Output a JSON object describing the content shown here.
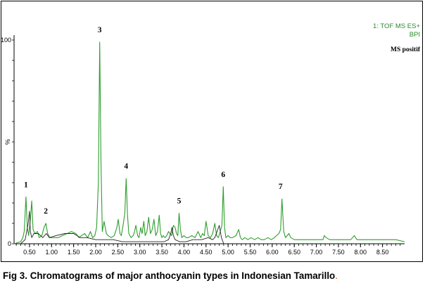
{
  "caption": {
    "text": "Fig 3. Chromatograms of major anthocyanin types in Indonesian Tamarillo",
    "period": "."
  },
  "detector": {
    "line1": "1: TOF MS ES+",
    "line2": "BPI"
  },
  "mode_label": "MS positif",
  "chart_data": {
    "type": "line",
    "xlabel": "",
    "ylabel": "%",
    "xlim": [
      0.15,
      9.0
    ],
    "ylim": [
      0,
      100
    ],
    "x_ticks": [
      0.5,
      1.0,
      1.5,
      2.0,
      2.5,
      3.0,
      3.5,
      4.0,
      4.5,
      5.0,
      5.5,
      6.0,
      6.5,
      7.0,
      7.5,
      8.0,
      8.5
    ],
    "x_tick_labels": [
      "0.50",
      "1.00",
      "1.50",
      "2.00",
      "2.50",
      "3.00",
      "3.50",
      "4.00",
      "4.50",
      "5.00",
      "5.50",
      "6.00",
      "6.50",
      "7.00",
      "7.50",
      "8.00",
      "8.50"
    ],
    "y_tick_labels": [
      "100",
      "0"
    ],
    "peaks": [
      {
        "label": "1",
        "x": 0.42,
        "y": 23
      },
      {
        "label": "2",
        "x": 0.87,
        "y": 10
      },
      {
        "label": "3",
        "x": 2.09,
        "y": 99
      },
      {
        "label": "4",
        "x": 2.69,
        "y": 32
      },
      {
        "label": "5",
        "x": 3.89,
        "y": 15
      },
      {
        "label": "6",
        "x": 4.89,
        "y": 28
      },
      {
        "label": "7",
        "x": 6.19,
        "y": 22
      }
    ],
    "series": [
      {
        "color": "#2e9e2e",
        "x": [
          0.15,
          0.3,
          0.35,
          0.38,
          0.42,
          0.45,
          0.48,
          0.52,
          0.55,
          0.58,
          0.62,
          0.68,
          0.72,
          0.78,
          0.83,
          0.87,
          0.91,
          0.96,
          1.05,
          1.15,
          1.25,
          1.35,
          1.45,
          1.55,
          1.62,
          1.68,
          1.75,
          1.82,
          1.88,
          1.93,
          1.98,
          2.02,
          2.06,
          2.09,
          2.12,
          2.15,
          2.19,
          2.24,
          2.28,
          2.35,
          2.42,
          2.48,
          2.51,
          2.55,
          2.58,
          2.62,
          2.66,
          2.69,
          2.72,
          2.75,
          2.8,
          2.85,
          2.88,
          2.91,
          2.95,
          2.98,
          3.02,
          3.05,
          3.09,
          3.12,
          3.16,
          3.2,
          3.24,
          3.28,
          3.32,
          3.36,
          3.4,
          3.44,
          3.47,
          3.5,
          3.53,
          3.57,
          3.61,
          3.65,
          3.68,
          3.72,
          3.76,
          3.8,
          3.83,
          3.86,
          3.89,
          3.92,
          3.95,
          4.0,
          4.05,
          4.1,
          4.18,
          4.25,
          4.32,
          4.38,
          4.42,
          4.46,
          4.5,
          4.55,
          4.6,
          4.65,
          4.7,
          4.74,
          4.78,
          4.82,
          4.86,
          4.89,
          4.92,
          4.95,
          5.0,
          5.05,
          5.1,
          5.18,
          5.24,
          5.28,
          5.32,
          5.38,
          5.45,
          5.52,
          5.6,
          5.68,
          5.75,
          5.82,
          5.9,
          5.98,
          6.05,
          6.1,
          6.15,
          6.19,
          6.22,
          6.26,
          6.3,
          6.34,
          6.38,
          6.42,
          6.5,
          6.6,
          6.7,
          6.8,
          6.9,
          7.0,
          7.1,
          7.15,
          7.18,
          7.22,
          7.3,
          7.4,
          7.5,
          7.6,
          7.7,
          7.78,
          7.82,
          7.86,
          7.92,
          8.0,
          8.2,
          8.4,
          8.6,
          8.8,
          9.0
        ],
        "y": [
          0,
          1,
          3,
          6,
          23,
          8,
          4,
          12,
          21,
          7,
          5,
          6,
          3,
          4,
          8,
          10,
          5,
          3,
          3,
          3,
          4,
          5,
          6,
          5,
          3,
          4,
          5,
          3,
          6,
          3,
          4,
          8,
          30,
          99,
          40,
          6,
          11,
          5,
          4,
          3,
          4,
          8,
          12,
          5,
          4,
          9,
          15,
          32,
          14,
          5,
          3,
          4,
          6,
          9,
          4,
          3,
          8,
          5,
          11,
          4,
          6,
          13,
          5,
          7,
          12,
          4,
          6,
          14,
          5,
          3,
          4,
          3,
          4,
          6,
          5,
          4,
          9,
          8,
          5,
          4,
          15,
          7,
          3,
          4,
          3,
          3,
          4,
          3,
          6,
          3,
          5,
          4,
          11,
          4,
          3,
          5,
          10,
          4,
          3,
          6,
          9,
          28,
          8,
          3,
          4,
          3,
          3,
          4,
          7,
          3,
          2,
          3,
          2,
          3,
          2,
          3,
          2,
          2,
          3,
          2,
          3,
          4,
          5,
          7,
          22,
          6,
          3,
          4,
          5,
          3,
          2,
          2,
          2,
          2,
          2,
          2,
          2,
          2,
          4,
          3,
          2,
          2,
          2,
          2,
          2,
          2,
          3,
          4,
          2,
          2,
          2,
          2,
          2,
          2,
          1
        ]
      },
      {
        "color": "#222222",
        "x": [
          0.3,
          0.4,
          0.47,
          0.5,
          0.52,
          0.55,
          0.6,
          0.7,
          0.8,
          0.88,
          0.95,
          1.1,
          1.3,
          1.5,
          1.65,
          1.8,
          2.0,
          2.2,
          2.4,
          2.6,
          2.8,
          3.0,
          3.2,
          3.4,
          3.55,
          3.65,
          3.7,
          3.73,
          3.76,
          3.8,
          3.9,
          4.05,
          4.2,
          4.4,
          4.55,
          4.65,
          4.7,
          4.75,
          4.8,
          4.85,
          4.9
        ],
        "y": [
          0,
          2,
          10,
          16,
          6,
          3,
          5,
          5,
          3,
          5,
          3,
          4,
          5,
          5,
          3,
          3,
          2,
          2,
          2,
          1,
          1,
          1,
          1,
          1,
          1,
          2,
          5,
          8,
          4,
          2,
          1,
          1,
          2,
          2,
          3,
          2,
          3,
          6,
          9,
          3,
          0
        ]
      }
    ]
  }
}
